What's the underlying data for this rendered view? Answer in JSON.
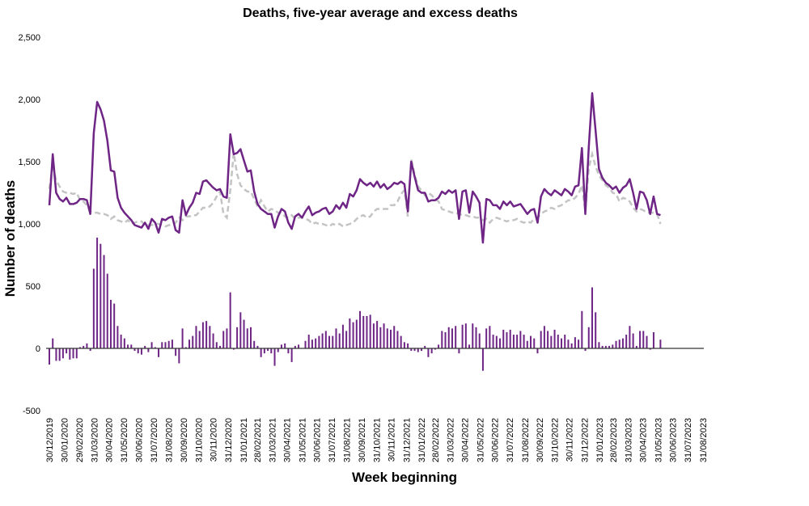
{
  "chart_data": {
    "type": "bar+line",
    "title": "Deaths, five-year average and excess deaths",
    "xlabel": "Week beginning",
    "ylabel": "Number of deaths",
    "ylim": [
      -500,
      2500
    ],
    "yticks": [
      "-500",
      "0",
      "500",
      "1,000",
      "1,500",
      "2,000",
      "2,500"
    ],
    "ytick_values": [
      -500,
      0,
      500,
      1000,
      1500,
      2000,
      2500
    ],
    "x_first_week": "30/12/2019",
    "x_frequency": "weekly",
    "xticks": [
      "30/12/2019",
      "30/01/2020",
      "29/02/2020",
      "31/03/2020",
      "30/04/2020",
      "31/05/2020",
      "30/06/2020",
      "31/07/2020",
      "31/08/2020",
      "30/09/2020",
      "31/10/2020",
      "30/11/2020",
      "31/12/2020",
      "31/01/2021",
      "28/02/2021",
      "31/03/2021",
      "30/04/2021",
      "31/05/2021",
      "30/06/2021",
      "31/07/2021",
      "31/08/2021",
      "30/09/2021",
      "31/10/2021",
      "30/11/2021",
      "31/12/2021",
      "31/01/2022",
      "28/02/2022",
      "31/03/2022",
      "30/04/2022",
      "31/05/2022",
      "30/06/2022",
      "31/07/2022",
      "31/08/2022",
      "30/09/2022",
      "31/10/2022",
      "30/11/2022",
      "31/12/2022",
      "31/01/2023",
      "28/02/2023",
      "31/03/2023",
      "30/04/2023",
      "31/05/2023",
      "30/06/2023",
      "31/07/2023",
      "31/08/2023"
    ],
    "grid": false,
    "legend": "none",
    "colors": {
      "deaths": "#6e2585",
      "average": "#c4c4c4",
      "excess": "#6e2585",
      "axis": "#333333"
    },
    "series": [
      {
        "kind": "line",
        "role": "deaths",
        "values": [
          1150,
          1560,
          1250,
          1200,
          1180,
          1210,
          1160,
          1160,
          1170,
          1200,
          1200,
          1190,
          1080,
          1730,
          1980,
          1920,
          1830,
          1670,
          1430,
          1420,
          1210,
          1130,
          1090,
          1060,
          1030,
          990,
          980,
          970,
          1010,
          960,
          1040,
          1010,
          930,
          1040,
          1030,
          1050,
          1060,
          950,
          930,
          1190,
          1070,
          1130,
          1170,
          1250,
          1240,
          1340,
          1350,
          1320,
          1290,
          1270,
          1280,
          1220,
          1210,
          1720,
          1560,
          1570,
          1600,
          1510,
          1420,
          1430,
          1260,
          1160,
          1120,
          1100,
          1080,
          1080,
          970,
          1060,
          1120,
          1100,
          1010,
          960,
          1060,
          1080,
          1050,
          1100,
          1140,
          1070,
          1090,
          1100,
          1120,
          1130,
          1080,
          1100,
          1150,
          1120,
          1170,
          1130,
          1240,
          1220,
          1270,
          1360,
          1330,
          1310,
          1330,
          1300,
          1340,
          1290,
          1320,
          1280,
          1300,
          1330,
          1320,
          1340,
          1320,
          1100,
          1500,
          1380,
          1270,
          1250,
          1250,
          1180,
          1190,
          1190,
          1210,
          1260,
          1240,
          1270,
          1250,
          1270,
          1040,
          1260,
          1270,
          1090,
          1260,
          1220,
          1170,
          850,
          1200,
          1190,
          1150,
          1150,
          1120,
          1180,
          1150,
          1180,
          1140,
          1150,
          1160,
          1120,
          1080,
          1110,
          1120,
          1010,
          1220,
          1280,
          1250,
          1230,
          1270,
          1250,
          1230,
          1280,
          1260,
          1230,
          1300,
          1310,
          1610,
          1080,
          1620,
          2050,
          1750,
          1440,
          1370,
          1330,
          1310,
          1280,
          1300,
          1250,
          1290,
          1310,
          1360,
          1250,
          1120,
          1260,
          1250,
          1190,
          1080,
          1220,
          1080,
          1070
        ]
      },
      {
        "kind": "dashed-line",
        "role": "five-year average",
        "values": [
          1280,
          1480,
          1350,
          1300,
          1260,
          1250,
          1250,
          1240,
          1250,
          1190,
          1180,
          1150,
          1100,
          1090,
          1090,
          1080,
          1080,
          1070,
          1040,
          1060,
          1030,
          1020,
          1010,
          1030,
          1000,
          1010,
          1020,
          1020,
          990,
          990,
          990,
          1000,
          1000,
          990,
          980,
          990,
          990,
          1010,
          1050,
          1030,
          1060,
          1060,
          1070,
          1070,
          1100,
          1130,
          1130,
          1140,
          1170,
          1220,
          1260,
          1080,
          1050,
          1270,
          1570,
          1400,
          1310,
          1280,
          1260,
          1260,
          1200,
          1140,
          1190,
          1140,
          1100,
          1120,
          1110,
          1090,
          1090,
          1060,
          1050,
          1070,
          1040,
          1050,
          1050,
          1040,
          1030,
          1000,
          1010,
          1000,
          1000,
          990,
          980,
          1000,
          990,
          1000,
          980,
          990,
          1000,
          1010,
          1040,
          1060,
          1070,
          1050,
          1060,
          1100,
          1120,
          1120,
          1120,
          1120,
          1150,
          1150,
          1180,
          1240,
          1270,
          1060,
          1520,
          1400,
          1300,
          1270,
          1230,
          1250,
          1230,
          1200,
          1180,
          1120,
          1110,
          1100,
          1090,
          1090,
          1080,
          1070,
          1070,
          1060,
          1060,
          1050,
          1050,
          1030,
          1040,
          1010,
          1040,
          1050,
          1040,
          1030,
          1020,
          1030,
          1030,
          1040,
          1020,
          1010,
          1020,
          1010,
          1040,
          1050,
          1080,
          1100,
          1110,
          1130,
          1120,
          1140,
          1150,
          1170,
          1190,
          1190,
          1210,
          1240,
          1310,
          1100,
          1450,
          1560,
          1460,
          1390,
          1350,
          1310,
          1290,
          1250,
          1240,
          1180,
          1210,
          1200,
          1180,
          1130,
          1100,
          1120,
          1110,
          1090,
          1090,
          1090,
          1080,
          1000
        ]
      },
      {
        "kind": "bar",
        "role": "excess deaths",
        "values": [
          -130,
          80,
          -100,
          -100,
          -80,
          -40,
          -90,
          -80,
          -80,
          10,
          20,
          40,
          -20,
          640,
          890,
          840,
          750,
          600,
          390,
          360,
          180,
          110,
          80,
          30,
          30,
          -20,
          -40,
          -50,
          20,
          -30,
          50,
          10,
          -70,
          50,
          50,
          60,
          70,
          -60,
          -120,
          160,
          10,
          70,
          100,
          180,
          140,
          210,
          220,
          180,
          120,
          50,
          20,
          140,
          160,
          450,
          -10,
          170,
          290,
          230,
          160,
          170,
          60,
          20,
          -70,
          -40,
          -20,
          -40,
          -140,
          -30,
          30,
          40,
          -40,
          -110,
          20,
          30,
          0,
          60,
          110,
          70,
          80,
          100,
          120,
          140,
          100,
          100,
          160,
          120,
          190,
          140,
          240,
          210,
          230,
          300,
          260,
          260,
          270,
          200,
          220,
          170,
          200,
          160,
          150,
          180,
          140,
          100,
          50,
          40,
          -20,
          -20,
          -30,
          -20,
          20,
          -70,
          -40,
          -10,
          30,
          140,
          130,
          170,
          160,
          180,
          -40,
          190,
          200,
          30,
          200,
          170,
          120,
          -180,
          160,
          180,
          110,
          100,
          80,
          150,
          130,
          150,
          110,
          110,
          140,
          110,
          60,
          100,
          80,
          -40,
          140,
          180,
          140,
          100,
          150,
          110,
          80,
          110,
          70,
          40,
          90,
          70,
          300,
          -20,
          170,
          490,
          290,
          50,
          20,
          20,
          20,
          30,
          60,
          70,
          80,
          110,
          180,
          120,
          20,
          140,
          140,
          100,
          -10,
          130,
          0,
          70
        ]
      }
    ]
  }
}
